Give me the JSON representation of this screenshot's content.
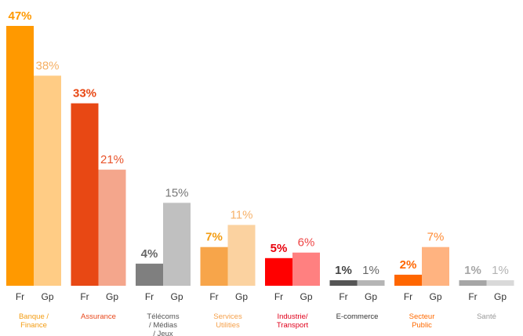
{
  "chart_data": {
    "type": "bar",
    "title": "",
    "xlabel": "",
    "ylabel": "",
    "ylim": [
      0,
      47
    ],
    "grid": false,
    "legend": "none",
    "sub_labels": [
      "Fr",
      "Gp"
    ],
    "groups": [
      {
        "category_lines": [
          "Banque /",
          "Finance"
        ],
        "category_color": "#f39c12",
        "bars": [
          {
            "sub": "Fr",
            "value": 47,
            "label": "47%",
            "color": "#ff9900",
            "label_color": "#ff9900",
            "bold": true
          },
          {
            "sub": "Gp",
            "value": 38,
            "label": "38%",
            "color": "#ffcc85",
            "label_color": "#f5b065",
            "bold": false
          }
        ]
      },
      {
        "category_lines": [
          "Assurance"
        ],
        "category_color": "#e8481c",
        "bars": [
          {
            "sub": "Fr",
            "value": 33,
            "label": "33%",
            "color": "#e84814",
            "label_color": "#e84814",
            "bold": true
          },
          {
            "sub": "Gp",
            "value": 21,
            "label": "21%",
            "color": "#f4a68c",
            "label_color": "#e8532a",
            "bold": false
          }
        ]
      },
      {
        "category_lines": [
          "Télécoms",
          "/ Médias",
          "/ Jeux"
        ],
        "category_color": "#555555",
        "bars": [
          {
            "sub": "Fr",
            "value": 4,
            "label": "4%",
            "color": "#7f7f7f",
            "label_color": "#666666",
            "bold": true
          },
          {
            "sub": "Gp",
            "value": 15,
            "label": "15%",
            "color": "#c0c0c0",
            "label_color": "#777777",
            "bold": false
          }
        ]
      },
      {
        "category_lines": [
          "Services",
          "Utilities"
        ],
        "category_color": "#f5a04a",
        "bars": [
          {
            "sub": "Fr",
            "value": 7,
            "label": "7%",
            "color": "#f7a54a",
            "label_color": "#f39c12",
            "bold": true
          },
          {
            "sub": "Gp",
            "value": 11,
            "label": "11%",
            "color": "#fbd2a0",
            "label_color": "#f7b26b",
            "bold": false
          }
        ]
      },
      {
        "category_lines": [
          "Industrie/",
          "Transport"
        ],
        "category_color": "#e0001b",
        "bars": [
          {
            "sub": "Fr",
            "value": 5,
            "label": "5%",
            "color": "#ff0000",
            "label_color": "#e8000b",
            "bold": true
          },
          {
            "sub": "Gp",
            "value": 6,
            "label": "6%",
            "color": "#ff8080",
            "label_color": "#ee4444",
            "bold": false
          }
        ]
      },
      {
        "category_lines": [
          "E-commerce"
        ],
        "category_color": "#333333",
        "bars": [
          {
            "sub": "Fr",
            "value": 1,
            "label": "1%",
            "color": "#555555",
            "label_color": "#444444",
            "bold": true
          },
          {
            "sub": "Gp",
            "value": 1,
            "label": "1%",
            "color": "#b5b5b5",
            "label_color": "#666666",
            "bold": false
          }
        ]
      },
      {
        "category_lines": [
          "Secteur",
          "Public"
        ],
        "category_color": "#ff6a00",
        "bars": [
          {
            "sub": "Fr",
            "value": 2,
            "label": "2%",
            "color": "#ff6600",
            "label_color": "#ff6600",
            "bold": true
          },
          {
            "sub": "Gp",
            "value": 7,
            "label": "7%",
            "color": "#ffb380",
            "label_color": "#ff8a33",
            "bold": false
          }
        ]
      },
      {
        "category_lines": [
          "Santé"
        ],
        "category_color": "#999999",
        "bars": [
          {
            "sub": "Fr",
            "value": 1,
            "label": "1%",
            "color": "#a6a6a6",
            "label_color": "#a6a6a6",
            "bold": true
          },
          {
            "sub": "Gp",
            "value": 1,
            "label": "1%",
            "color": "#d9d9d9",
            "label_color": "#b3b3b3",
            "bold": false
          }
        ]
      }
    ]
  }
}
